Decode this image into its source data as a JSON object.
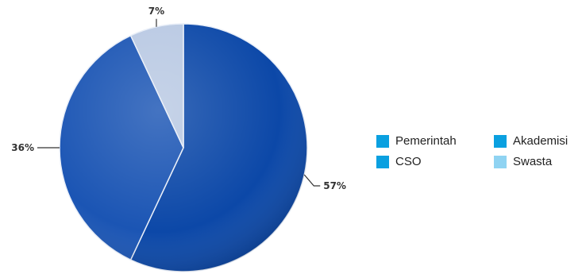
{
  "chart_data": {
    "type": "pie",
    "categories": [
      "Pemerintah",
      "Akademisi",
      "CSO",
      "Swasta"
    ],
    "values": [
      57,
      0,
      36,
      7
    ],
    "slice_labels": [
      "57%",
      "",
      "36%",
      "7%"
    ],
    "legend_position": "right",
    "colors": {
      "Pemerintah": "#0c48a8",
      "Akademisi": "#0aa0e0",
      "CSO": "#1b55b4",
      "Swasta": "#b9c9e3"
    },
    "legend_colors": {
      "Pemerintah": "#0aa0e0",
      "Akademisi": "#0aa0e0",
      "CSO": "#0aa0e0",
      "Swasta": "#8fd3f2"
    }
  }
}
